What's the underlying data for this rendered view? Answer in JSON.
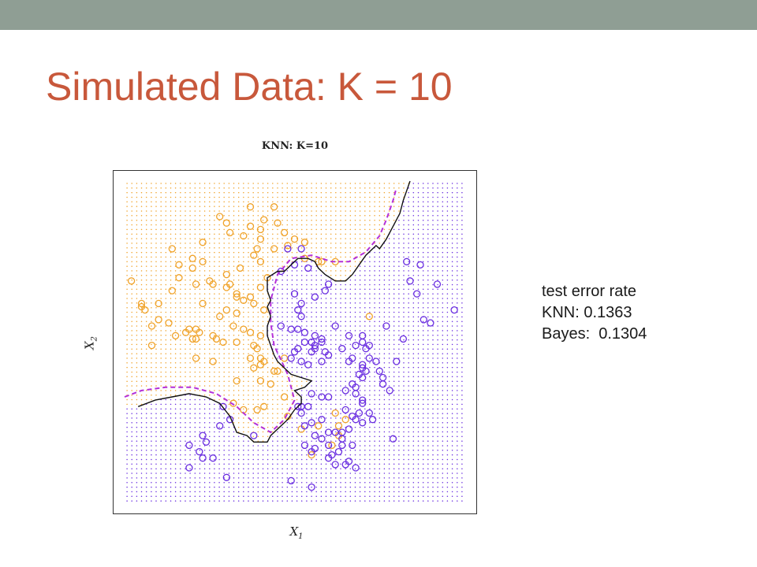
{
  "slide": {
    "title": "Simulated Data: K = 10",
    "colors": {
      "topbar": "#8f9e94",
      "title": "#c8583b"
    }
  },
  "annotations": {
    "line1": "test error rate",
    "line2": "KNN: 0.1363",
    "line3": "Bayes:  0.1304"
  },
  "chart_data": {
    "type": "scatter",
    "title": "KNN: K=10",
    "xlabel": "X1",
    "ylabel": "X2",
    "xlim": [
      0,
      1
    ],
    "ylim": [
      0,
      1
    ],
    "grid": false,
    "legend": "none",
    "colors": {
      "orange": "#f0a32a",
      "blue": "#6a2ee0",
      "knn_boundary": "#111111",
      "bayes_boundary": "#b430d8"
    },
    "series": [
      {
        "color": "orange",
        "points": [
          [
            0.37,
            0.92
          ],
          [
            0.44,
            0.92
          ],
          [
            0.28,
            0.89
          ],
          [
            0.41,
            0.88
          ],
          [
            0.3,
            0.87
          ],
          [
            0.45,
            0.87
          ],
          [
            0.37,
            0.86
          ],
          [
            0.4,
            0.85
          ],
          [
            0.47,
            0.84
          ],
          [
            0.31,
            0.84
          ],
          [
            0.35,
            0.83
          ],
          [
            0.4,
            0.82
          ],
          [
            0.14,
            0.79
          ],
          [
            0.48,
            0.8
          ],
          [
            0.5,
            0.82
          ],
          [
            0.53,
            0.81
          ],
          [
            0.23,
            0.81
          ],
          [
            0.39,
            0.79
          ],
          [
            0.38,
            0.77
          ],
          [
            0.44,
            0.79
          ],
          [
            0.57,
            0.75
          ],
          [
            0.62,
            0.75
          ],
          [
            0.53,
            0.76
          ],
          [
            0.58,
            0.75
          ],
          [
            0.2,
            0.76
          ],
          [
            0.23,
            0.75
          ],
          [
            0.16,
            0.74
          ],
          [
            0.2,
            0.73
          ],
          [
            0.34,
            0.73
          ],
          [
            0.3,
            0.71
          ],
          [
            0.4,
            0.75
          ],
          [
            0.16,
            0.7
          ],
          [
            0.25,
            0.69
          ],
          [
            0.42,
            0.7
          ],
          [
            0.02,
            0.69
          ],
          [
            0.21,
            0.68
          ],
          [
            0.14,
            0.66
          ],
          [
            0.26,
            0.68
          ],
          [
            0.3,
            0.67
          ],
          [
            0.31,
            0.68
          ],
          [
            0.4,
            0.67
          ],
          [
            0.33,
            0.65
          ],
          [
            0.38,
            0.62
          ],
          [
            0.05,
            0.62
          ],
          [
            0.05,
            0.61
          ],
          [
            0.1,
            0.62
          ],
          [
            0.23,
            0.62
          ],
          [
            0.33,
            0.64
          ],
          [
            0.35,
            0.63
          ],
          [
            0.28,
            0.58
          ],
          [
            0.3,
            0.6
          ],
          [
            0.41,
            0.6
          ],
          [
            0.37,
            0.64
          ],
          [
            0.06,
            0.6
          ],
          [
            0.1,
            0.57
          ],
          [
            0.08,
            0.55
          ],
          [
            0.13,
            0.56
          ],
          [
            0.19,
            0.54
          ],
          [
            0.21,
            0.54
          ],
          [
            0.22,
            0.53
          ],
          [
            0.18,
            0.53
          ],
          [
            0.15,
            0.52
          ],
          [
            0.32,
            0.55
          ],
          [
            0.35,
            0.54
          ],
          [
            0.33,
            0.59
          ],
          [
            0.33,
            0.5
          ],
          [
            0.37,
            0.53
          ],
          [
            0.2,
            0.51
          ],
          [
            0.21,
            0.51
          ],
          [
            0.27,
            0.51
          ],
          [
            0.29,
            0.5
          ],
          [
            0.4,
            0.52
          ],
          [
            0.26,
            0.52
          ],
          [
            0.38,
            0.49
          ],
          [
            0.39,
            0.48
          ],
          [
            0.4,
            0.45
          ],
          [
            0.08,
            0.49
          ],
          [
            0.21,
            0.45
          ],
          [
            0.26,
            0.44
          ],
          [
            0.41,
            0.44
          ],
          [
            0.37,
            0.45
          ],
          [
            0.38,
            0.42
          ],
          [
            0.4,
            0.38
          ],
          [
            0.43,
            0.37
          ],
          [
            0.44,
            0.41
          ],
          [
            0.45,
            0.41
          ],
          [
            0.33,
            0.38
          ],
          [
            0.32,
            0.31
          ],
          [
            0.41,
            0.3
          ],
          [
            0.39,
            0.29
          ],
          [
            0.35,
            0.29
          ],
          [
            0.47,
            0.33
          ],
          [
            0.62,
            0.28
          ],
          [
            0.63,
            0.21
          ],
          [
            0.55,
            0.15
          ],
          [
            0.48,
            0.27
          ],
          [
            0.57,
            0.24
          ],
          [
            0.52,
            0.23
          ],
          [
            0.63,
            0.24
          ],
          [
            0.61,
            0.18
          ],
          [
            0.72,
            0.58
          ],
          [
            0.65,
            0.26
          ],
          [
            0.47,
            0.45
          ],
          [
            0.4,
            0.43
          ]
        ]
      },
      {
        "color": "blue",
        "points": [
          [
            0.48,
            0.79
          ],
          [
            0.52,
            0.79
          ],
          [
            0.5,
            0.74
          ],
          [
            0.46,
            0.72
          ],
          [
            0.54,
            0.73
          ],
          [
            0.6,
            0.68
          ],
          [
            0.59,
            0.66
          ],
          [
            0.56,
            0.64
          ],
          [
            0.5,
            0.65
          ],
          [
            0.52,
            0.62
          ],
          [
            0.51,
            0.6
          ],
          [
            0.52,
            0.58
          ],
          [
            0.46,
            0.55
          ],
          [
            0.49,
            0.54
          ],
          [
            0.51,
            0.54
          ],
          [
            0.53,
            0.53
          ],
          [
            0.56,
            0.52
          ],
          [
            0.58,
            0.51
          ],
          [
            0.53,
            0.5
          ],
          [
            0.55,
            0.5
          ],
          [
            0.56,
            0.49
          ],
          [
            0.58,
            0.5
          ],
          [
            0.56,
            0.48
          ],
          [
            0.55,
            0.47
          ],
          [
            0.59,
            0.47
          ],
          [
            0.6,
            0.46
          ],
          [
            0.5,
            0.47
          ],
          [
            0.51,
            0.48
          ],
          [
            0.49,
            0.45
          ],
          [
            0.52,
            0.44
          ],
          [
            0.54,
            0.43
          ],
          [
            0.58,
            0.44
          ],
          [
            0.62,
            0.55
          ],
          [
            0.66,
            0.52
          ],
          [
            0.7,
            0.52
          ],
          [
            0.7,
            0.5
          ],
          [
            0.68,
            0.49
          ],
          [
            0.71,
            0.48
          ],
          [
            0.72,
            0.49
          ],
          [
            0.64,
            0.48
          ],
          [
            0.67,
            0.45
          ],
          [
            0.66,
            0.44
          ],
          [
            0.7,
            0.43
          ],
          [
            0.7,
            0.42
          ],
          [
            0.72,
            0.45
          ],
          [
            0.74,
            0.44
          ],
          [
            0.75,
            0.41
          ],
          [
            0.76,
            0.39
          ],
          [
            0.71,
            0.41
          ],
          [
            0.69,
            0.4
          ],
          [
            0.7,
            0.39
          ],
          [
            0.65,
            0.35
          ],
          [
            0.67,
            0.37
          ],
          [
            0.68,
            0.36
          ],
          [
            0.7,
            0.32
          ],
          [
            0.68,
            0.34
          ],
          [
            0.7,
            0.31
          ],
          [
            0.6,
            0.33
          ],
          [
            0.58,
            0.33
          ],
          [
            0.55,
            0.34
          ],
          [
            0.51,
            0.3
          ],
          [
            0.52,
            0.3
          ],
          [
            0.54,
            0.3
          ],
          [
            0.52,
            0.28
          ],
          [
            0.58,
            0.26
          ],
          [
            0.55,
            0.25
          ],
          [
            0.53,
            0.24
          ],
          [
            0.56,
            0.21
          ],
          [
            0.58,
            0.2
          ],
          [
            0.6,
            0.22
          ],
          [
            0.62,
            0.22
          ],
          [
            0.64,
            0.22
          ],
          [
            0.66,
            0.23
          ],
          [
            0.68,
            0.26
          ],
          [
            0.73,
            0.26
          ],
          [
            0.67,
            0.27
          ],
          [
            0.65,
            0.29
          ],
          [
            0.69,
            0.28
          ],
          [
            0.72,
            0.28
          ],
          [
            0.7,
            0.25
          ],
          [
            0.64,
            0.18
          ],
          [
            0.63,
            0.16
          ],
          [
            0.61,
            0.15
          ],
          [
            0.6,
            0.14
          ],
          [
            0.62,
            0.12
          ],
          [
            0.65,
            0.12
          ],
          [
            0.66,
            0.13
          ],
          [
            0.68,
            0.11
          ],
          [
            0.67,
            0.18
          ],
          [
            0.64,
            0.2
          ],
          [
            0.6,
            0.18
          ],
          [
            0.56,
            0.17
          ],
          [
            0.55,
            0.16
          ],
          [
            0.53,
            0.18
          ],
          [
            0.38,
            0.21
          ],
          [
            0.23,
            0.21
          ],
          [
            0.28,
            0.24
          ],
          [
            0.31,
            0.26
          ],
          [
            0.29,
            0.3
          ],
          [
            0.24,
            0.19
          ],
          [
            0.19,
            0.18
          ],
          [
            0.22,
            0.16
          ],
          [
            0.26,
            0.14
          ],
          [
            0.23,
            0.14
          ],
          [
            0.19,
            0.11
          ],
          [
            0.3,
            0.08
          ],
          [
            0.49,
            0.07
          ],
          [
            0.55,
            0.05
          ],
          [
            0.83,
            0.75
          ],
          [
            0.87,
            0.74
          ],
          [
            0.84,
            0.69
          ],
          [
            0.86,
            0.65
          ],
          [
            0.92,
            0.68
          ],
          [
            0.97,
            0.6
          ],
          [
            0.9,
            0.56
          ],
          [
            0.77,
            0.55
          ],
          [
            0.82,
            0.51
          ],
          [
            0.8,
            0.44
          ],
          [
            0.76,
            0.37
          ],
          [
            0.78,
            0.35
          ],
          [
            0.79,
            0.2
          ],
          [
            0.88,
            0.57
          ]
        ]
      }
    ],
    "knn_boundary": [
      [
        0.04,
        0.3
      ],
      [
        0.09,
        0.32
      ],
      [
        0.14,
        0.33
      ],
      [
        0.19,
        0.34
      ],
      [
        0.24,
        0.33
      ],
      [
        0.28,
        0.31
      ],
      [
        0.31,
        0.27
      ],
      [
        0.33,
        0.22
      ],
      [
        0.36,
        0.21
      ],
      [
        0.38,
        0.19
      ],
      [
        0.4,
        0.19
      ],
      [
        0.42,
        0.19
      ],
      [
        0.43,
        0.21
      ],
      [
        0.45,
        0.23
      ],
      [
        0.48,
        0.26
      ],
      [
        0.5,
        0.29
      ],
      [
        0.52,
        0.31
      ],
      [
        0.52,
        0.33
      ],
      [
        0.5,
        0.35
      ],
      [
        0.53,
        0.36
      ],
      [
        0.55,
        0.38
      ],
      [
        0.52,
        0.39
      ],
      [
        0.49,
        0.4
      ],
      [
        0.47,
        0.42
      ],
      [
        0.45,
        0.44
      ],
      [
        0.44,
        0.46
      ],
      [
        0.43,
        0.49
      ],
      [
        0.42,
        0.52
      ],
      [
        0.42,
        0.55
      ],
      [
        0.43,
        0.58
      ],
      [
        0.42,
        0.61
      ],
      [
        0.43,
        0.63
      ],
      [
        0.42,
        0.66
      ],
      [
        0.42,
        0.7
      ],
      [
        0.45,
        0.72
      ],
      [
        0.47,
        0.72
      ],
      [
        0.49,
        0.74
      ],
      [
        0.51,
        0.76
      ],
      [
        0.54,
        0.76
      ],
      [
        0.56,
        0.75
      ],
      [
        0.57,
        0.73
      ],
      [
        0.59,
        0.71
      ],
      [
        0.62,
        0.69
      ],
      [
        0.65,
        0.69
      ],
      [
        0.67,
        0.71
      ],
      [
        0.69,
        0.74
      ],
      [
        0.71,
        0.77
      ],
      [
        0.73,
        0.79
      ],
      [
        0.74,
        0.8
      ],
      [
        0.75,
        0.79
      ],
      [
        0.77,
        0.82
      ],
      [
        0.79,
        0.86
      ],
      [
        0.81,
        0.9
      ],
      [
        0.82,
        0.94
      ],
      [
        0.83,
        0.97
      ],
      [
        0.84,
        1.0
      ]
    ],
    "bayes_boundary": [
      [
        0.0,
        0.33
      ],
      [
        0.05,
        0.35
      ],
      [
        0.12,
        0.36
      ],
      [
        0.2,
        0.36
      ],
      [
        0.27,
        0.34
      ],
      [
        0.33,
        0.3
      ],
      [
        0.38,
        0.25
      ],
      [
        0.43,
        0.22
      ],
      [
        0.47,
        0.26
      ],
      [
        0.5,
        0.32
      ],
      [
        0.48,
        0.4
      ],
      [
        0.44,
        0.49
      ],
      [
        0.43,
        0.56
      ],
      [
        0.43,
        0.63
      ],
      [
        0.45,
        0.71
      ],
      [
        0.49,
        0.76
      ],
      [
        0.55,
        0.77
      ],
      [
        0.61,
        0.75
      ],
      [
        0.66,
        0.75
      ],
      [
        0.71,
        0.78
      ],
      [
        0.75,
        0.83
      ],
      [
        0.77,
        0.88
      ],
      [
        0.79,
        0.94
      ],
      [
        0.8,
        0.98
      ]
    ]
  }
}
